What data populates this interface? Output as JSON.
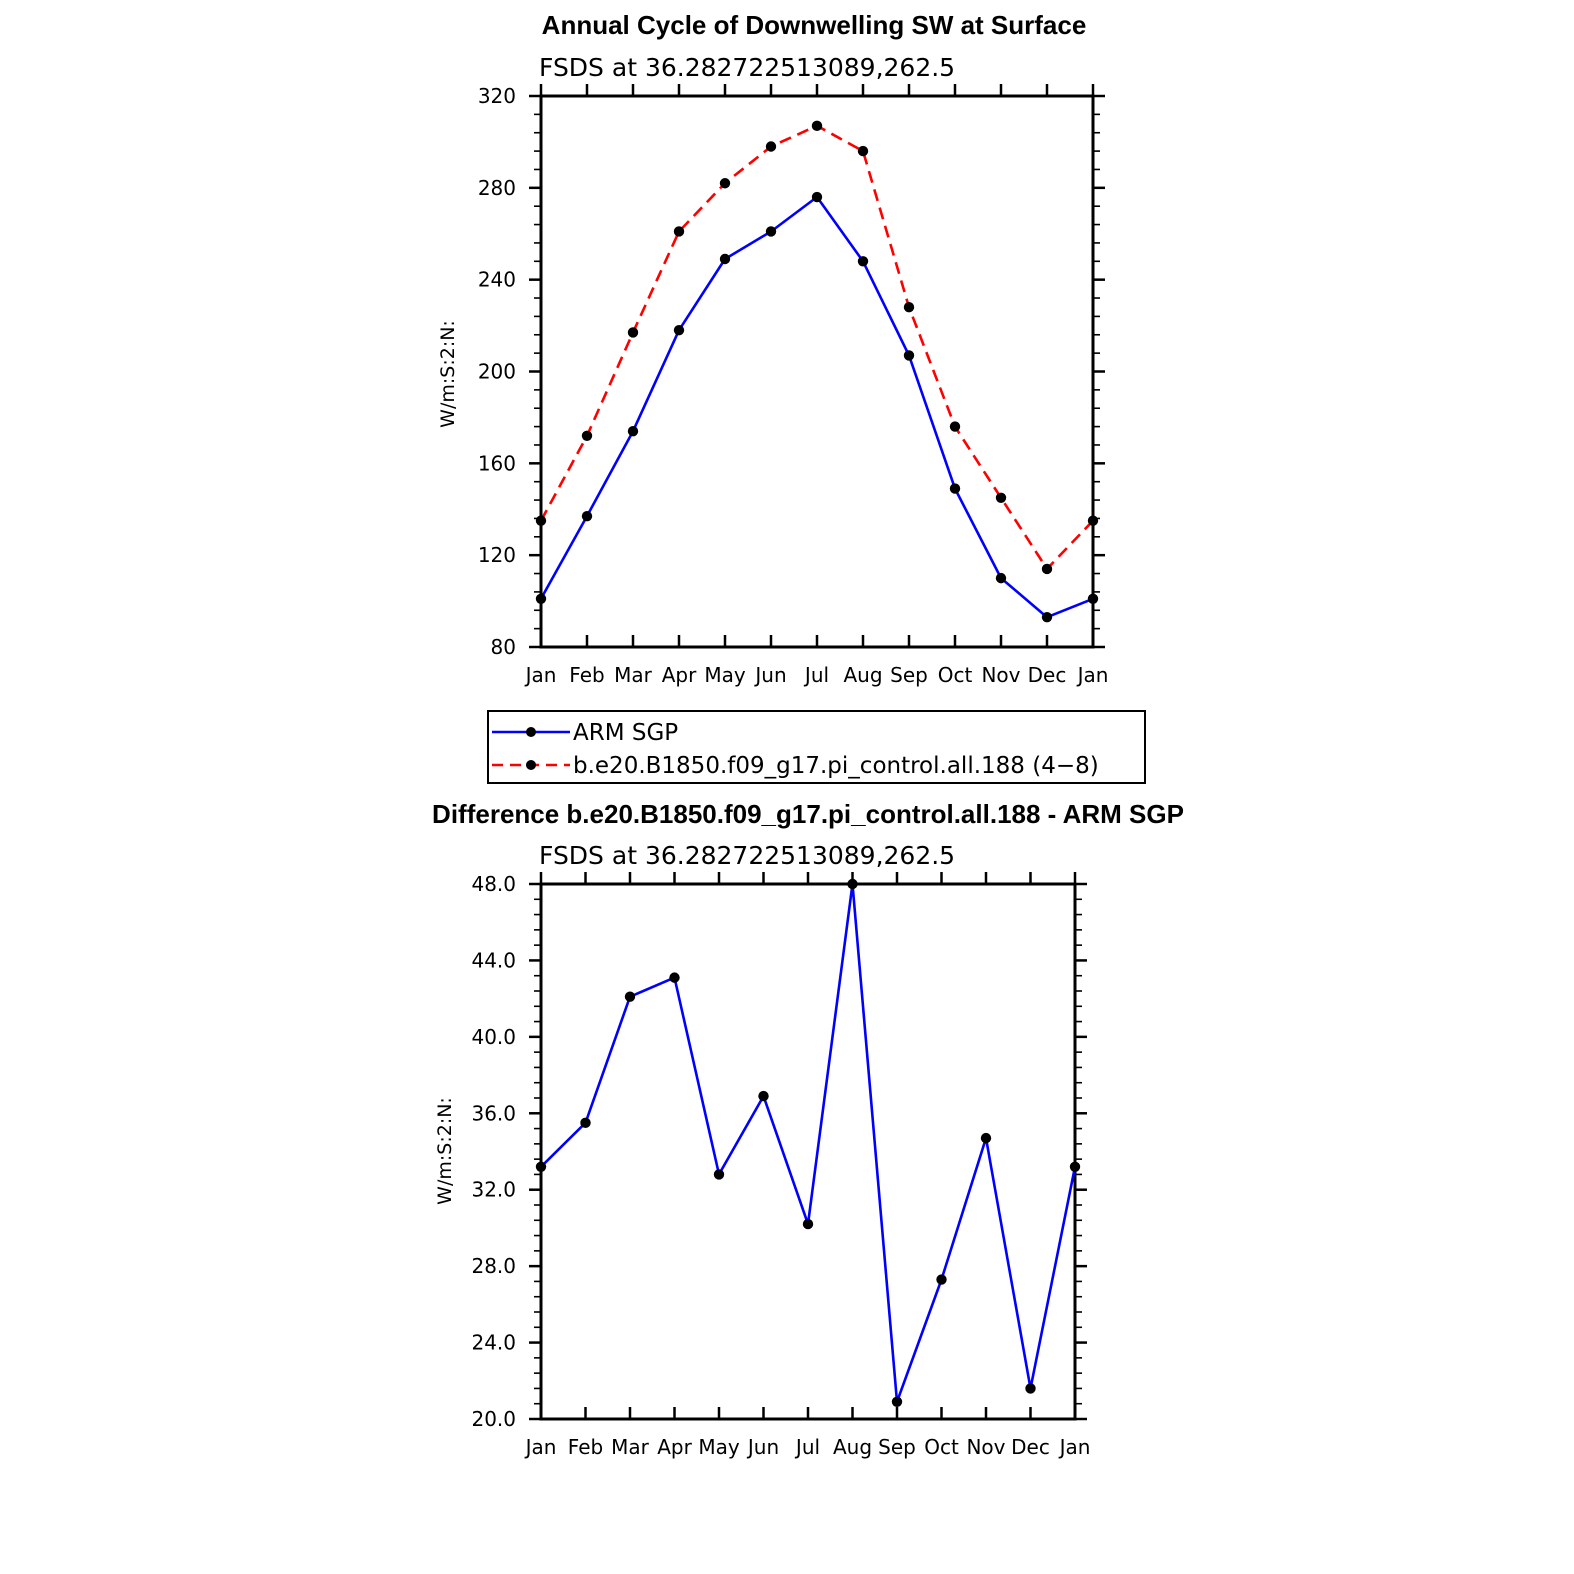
{
  "chart_data": [
    {
      "type": "line",
      "title": "Annual Cycle of Downwelling SW at Surface",
      "subtitle": "FSDS at 36.282722513089,262.5",
      "xlabel": "",
      "ylabel": "W/m:S:2:N:",
      "categories": [
        "Jan",
        "Feb",
        "Mar",
        "Apr",
        "May",
        "Jun",
        "Jul",
        "Aug",
        "Sep",
        "Oct",
        "Nov",
        "Dec",
        "Jan"
      ],
      "ylim": [
        80,
        320
      ],
      "yticks": [
        "80",
        "120",
        "160",
        "200",
        "240",
        "280",
        "320"
      ],
      "series": [
        {
          "name": "ARM SGP",
          "color": "#0000ff",
          "dash": "solid",
          "values": [
            101,
            137,
            174,
            218,
            249,
            261,
            276,
            248,
            207,
            149,
            110,
            93,
            101
          ]
        },
        {
          "name": "b.e20.B1850.f09_g17.pi_control.all.188 (4−8)",
          "color": "#ff0000",
          "dash": "dashed",
          "values": [
            135,
            172,
            217,
            261,
            282,
            298,
            307,
            296,
            228,
            176,
            145,
            114,
            135
          ]
        }
      ],
      "legend": "below"
    },
    {
      "type": "line",
      "title": "Difference b.e20.B1850.f09_g17.pi_control.all.188 - ARM SGP",
      "subtitle": "FSDS at 36.282722513089,262.5",
      "xlabel": "",
      "ylabel": "W/m:S:2:N:",
      "categories": [
        "Jan",
        "Feb",
        "Mar",
        "Apr",
        "May",
        "Jun",
        "Jul",
        "Aug",
        "Sep",
        "Oct",
        "Nov",
        "Dec",
        "Jan"
      ],
      "ylim": [
        20,
        48
      ],
      "yticks": [
        "20.0",
        "24.0",
        "28.0",
        "32.0",
        "36.0",
        "40.0",
        "44.0",
        "48.0"
      ],
      "series": [
        {
          "name": "Difference",
          "color": "#0000ff",
          "dash": "solid",
          "values": [
            33.2,
            35.5,
            42.1,
            43.1,
            32.8,
            36.9,
            30.2,
            48.0,
            20.9,
            27.3,
            34.7,
            21.6,
            33.2
          ]
        }
      ]
    }
  ]
}
